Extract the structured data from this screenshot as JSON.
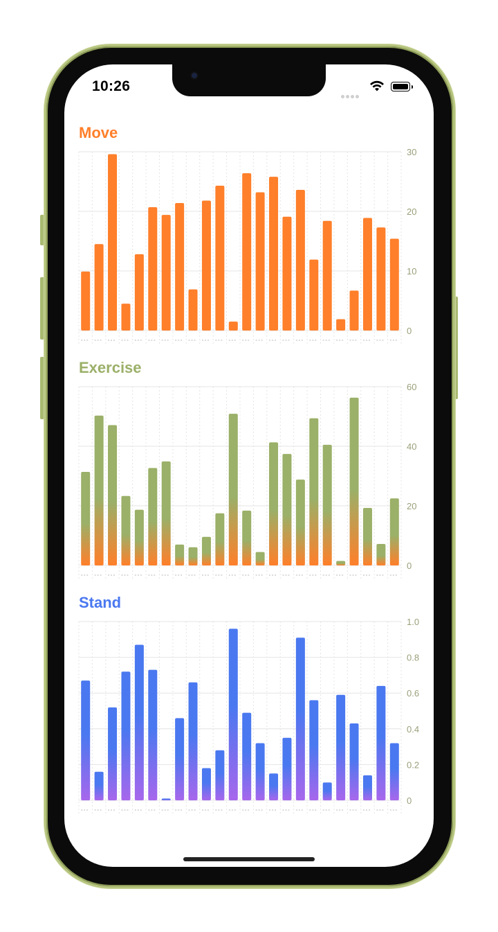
{
  "status_bar": {
    "time": "10:26"
  },
  "colors": {
    "move": "#ff7f2a",
    "exercise": "#9bb068",
    "stand_top": "#4a78f0",
    "stand_bottom": "#a767ec",
    "grid": "#e4e4e4",
    "tick_text": "#9aa07a",
    "frame": "#b5c47d"
  },
  "sections": [
    {
      "key": "move",
      "title": "Move"
    },
    {
      "key": "exercise",
      "title": "Exercise"
    },
    {
      "key": "stand",
      "title": "Stand"
    }
  ],
  "chart_data": [
    {
      "type": "bar",
      "title": "Move",
      "ylim": [
        0,
        30
      ],
      "yticks": [
        "0",
        "10",
        "20",
        "30"
      ],
      "grid": true,
      "values": [
        9.9,
        14.5,
        29.6,
        4.5,
        12.8,
        20.7,
        19.4,
        21.4,
        6.9,
        21.8,
        24.3,
        1.5,
        26.4,
        23.2,
        25.8,
        19.1,
        23.6,
        11.9,
        18.4,
        1.9,
        6.7,
        18.9,
        17.3,
        15.4
      ]
    },
    {
      "type": "bar",
      "title": "Exercise",
      "ylim": [
        0,
        60
      ],
      "yticks": [
        "0",
        "20",
        "40",
        "60"
      ],
      "grid": true,
      "values": [
        31.4,
        50.3,
        47.1,
        23.3,
        18.7,
        32.7,
        34.9,
        7.0,
        6.1,
        9.6,
        17.5,
        50.9,
        18.4,
        4.5,
        41.3,
        37.4,
        28.8,
        49.4,
        40.5,
        1.5,
        56.3,
        19.3,
        7.2,
        22.5
      ]
    },
    {
      "type": "bar",
      "title": "Stand",
      "ylim": [
        0,
        1.0
      ],
      "yticks": [
        "0",
        "0.2",
        "0.4",
        "0.6",
        "0.8",
        "1.0"
      ],
      "grid": true,
      "values": [
        0.67,
        0.16,
        0.52,
        0.72,
        0.87,
        0.73,
        0.01,
        0.46,
        0.66,
        0.18,
        0.28,
        0.96,
        0.49,
        0.32,
        0.15,
        0.35,
        0.91,
        0.56,
        0.1,
        0.59,
        0.43,
        0.14,
        0.64,
        0.32
      ]
    }
  ]
}
